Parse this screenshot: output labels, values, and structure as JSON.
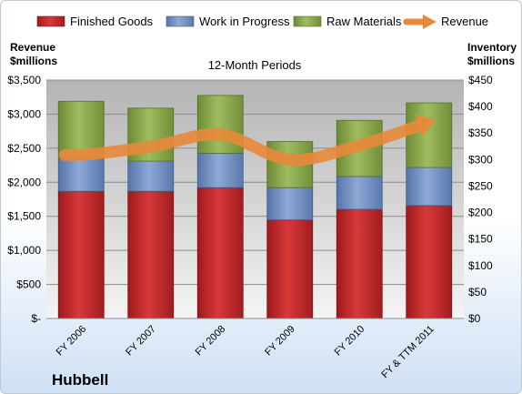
{
  "chart_data": {
    "type": "bar",
    "subtitle": "12-Month Periods",
    "company": "Hubbell",
    "categories": [
      "FY 2006",
      "FY 2007",
      "FY 2008",
      "FY 2009",
      "FY 2010",
      "FY & TTM 2011"
    ],
    "left_axis": {
      "label_line1": "Revenue",
      "label_line2": "$millions",
      "ylim": [
        0,
        3500
      ],
      "ticks": [
        0,
        500,
        1000,
        1500,
        2000,
        2500,
        3000,
        3500
      ],
      "tick_labels": [
        "$-",
        "$500",
        "$1,000",
        "$1,500",
        "$2,000",
        "$2,500",
        "$3,000",
        "$3,500"
      ]
    },
    "right_axis": {
      "label_line1": "Inventory",
      "label_line2": "$millions",
      "ylim": [
        0,
        450
      ],
      "ticks": [
        0,
        50,
        100,
        150,
        200,
        250,
        300,
        350,
        400,
        450
      ],
      "tick_labels": [
        "$0",
        "$50",
        "$100",
        "$150",
        "$200",
        "$250",
        "$300",
        "$350",
        "$400",
        "$450"
      ]
    },
    "series": [
      {
        "name": "Finished Goods",
        "axis": "right",
        "kind": "stacked-bar",
        "color": "#c0282a",
        "values": [
          240,
          240,
          247,
          186,
          206,
          213
        ]
      },
      {
        "name": "Work in Progress",
        "axis": "right",
        "kind": "stacked-bar",
        "color": "#6f8dc0",
        "values": [
          62,
          57,
          65,
          61,
          62,
          72
        ]
      },
      {
        "name": "Raw Materials",
        "axis": "right",
        "kind": "stacked-bar",
        "color": "#86a44b",
        "values": [
          108,
          100,
          109,
          87,
          106,
          122
        ]
      },
      {
        "name": "Revenue",
        "axis": "left",
        "kind": "line-arrow",
        "color": "#e8883a",
        "values": [
          2400,
          2520,
          2700,
          2330,
          2540,
          2880
        ]
      }
    ],
    "grid": true,
    "legend_position": "top"
  },
  "colors": {
    "plot_bg_top": "#b4b4b4",
    "plot_bg_bottom": "#f4f4f4",
    "gridline": "#8c8c8c"
  }
}
